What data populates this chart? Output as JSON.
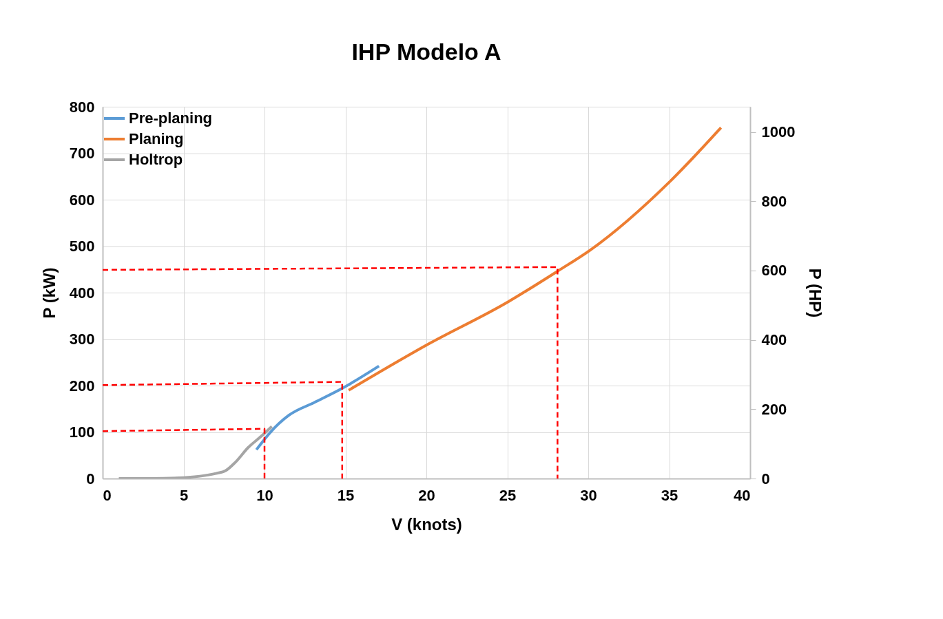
{
  "chart_data": {
    "type": "line",
    "title": "IHP Modelo A",
    "xlabel": "V (knots)",
    "ylabel": "P (kW)",
    "y2label": "P (HP)",
    "xlim": [
      0,
      40
    ],
    "xticks": [
      0,
      5,
      10,
      15,
      20,
      25,
      30,
      35,
      40
    ],
    "ylim": [
      0,
      800
    ],
    "yticks": [
      0,
      100,
      200,
      300,
      400,
      500,
      600,
      700,
      800
    ],
    "y2lim": [
      0,
      1072.8
    ],
    "y2ticks": [
      0,
      200,
      400,
      600,
      800,
      1000
    ],
    "grid": true,
    "legend": "top left",
    "line_style": "solid",
    "series": [
      {
        "name": "Pre-planing",
        "color": "#5b9bd5",
        "x": [
          9.5,
          10.4,
          11.5,
          13.1,
          14.8,
          17.07
        ],
        "values": [
          62,
          101,
          136,
          164,
          194,
          242
        ]
      },
      {
        "name": "Planing",
        "color": "#ed7d31",
        "x": [
          15.2,
          20.0,
          25.04,
          28.1,
          30.1,
          35.1,
          38.2
        ],
        "values": [
          190,
          287,
          380,
          446,
          491,
          641,
          755
        ]
      },
      {
        "name": "Holtrop",
        "color": "#a5a5a5",
        "x": [
          1,
          3,
          5,
          6,
          7,
          7.6,
          8.2,
          9,
          9.7,
          10.45
        ],
        "values": [
          0,
          0,
          2,
          5,
          11,
          17,
          35,
          67,
          88,
          112
        ]
      },
      {
        "color": "#ff0000",
        "line_style": "dashed",
        "x": [
          0,
          10,
          10
        ],
        "values": [
          102,
          107,
          0
        ]
      },
      {
        "color": "#ff0000",
        "line_style": "dashed",
        "x": [
          0,
          14.8,
          14.8
        ],
        "values": [
          201,
          208,
          0
        ]
      },
      {
        "color": "#ff0000",
        "line_style": "dashed",
        "x": [
          0,
          28.1,
          28.1
        ],
        "values": [
          449,
          455,
          0
        ]
      }
    ]
  }
}
